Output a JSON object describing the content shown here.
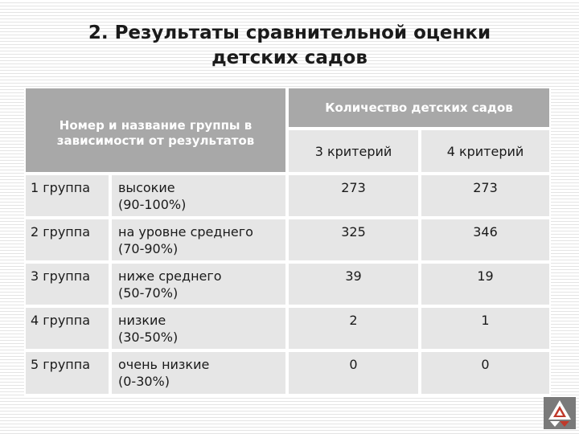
{
  "title": {
    "line1": "2. Результаты сравнительной оценки",
    "line2": "детских садов"
  },
  "table": {
    "header_group": "Номер и название группы в зависимости от результатов",
    "header_count": "Количество детских садов",
    "criterion_3": "3 критерий",
    "criterion_4": "4 критерий",
    "rows": [
      {
        "group": "1 группа",
        "desc_line1": "высокие",
        "desc_line2": "(90-100%)",
        "c3": "273",
        "c4": "273"
      },
      {
        "group": "2 группа",
        "desc_line1": "на уровне среднего",
        "desc_line2": "(70-90%)",
        "c3": "325",
        "c4": "346"
      },
      {
        "group": "3 группа",
        "desc_line1": "ниже среднего",
        "desc_line2": "(50-70%)",
        "c3": "39",
        "c4": "19"
      },
      {
        "group": "4 группа",
        "desc_line1": "низкие",
        "desc_line2": "(30-50%)",
        "c3": "2",
        "c4": "1"
      },
      {
        "group": "5 группа",
        "desc_line1": "очень низкие",
        "desc_line2": "(0-30%)",
        "c3": "0",
        "c4": "0"
      }
    ]
  },
  "colors": {
    "header_bg": "#a8a8a8",
    "cell_bg": "#e6e6e6",
    "logo_red": "#c0392b"
  },
  "icons": {
    "corner_logo": "geometric-triangles-logo-icon"
  }
}
